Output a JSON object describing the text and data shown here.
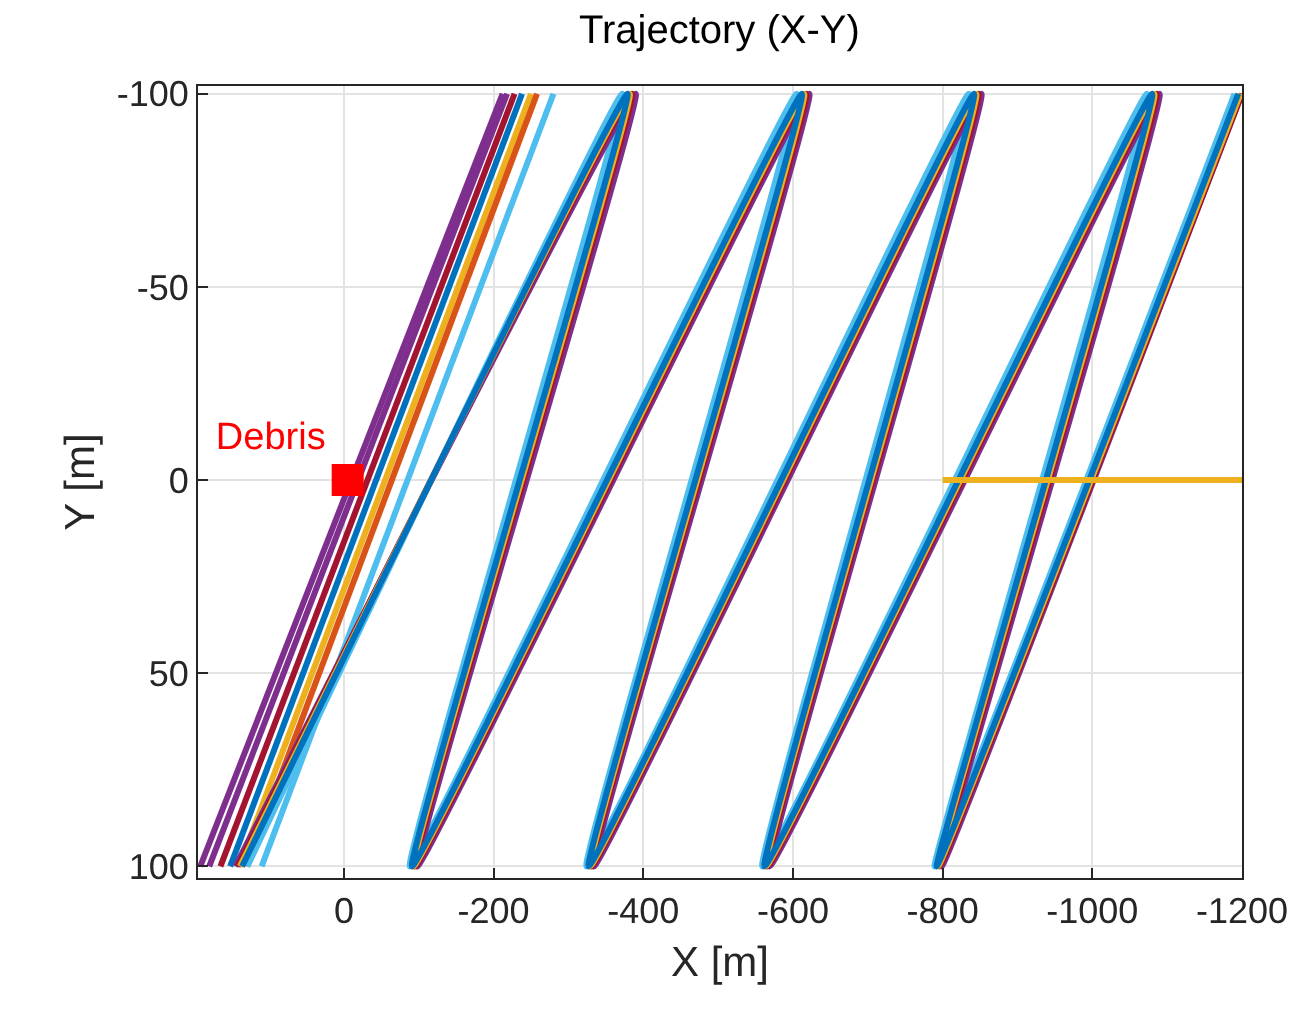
{
  "chart_data": {
    "type": "line",
    "title": "Trajectory (X-Y)",
    "xlabel": "X [m]",
    "ylabel": "Y [m]",
    "xlim": [
      195,
      -1200
    ],
    "xticks": [
      0,
      -200,
      -400,
      -600,
      -800,
      -1000,
      -1200
    ],
    "ylim": [
      103,
      -102
    ],
    "yticks": [
      -100,
      -50,
      0,
      50,
      100
    ],
    "grid": true,
    "legend": false,
    "marker": "none",
    "line_style": "solid",
    "series": [
      {
        "color": "#7e2f8e",
        "x": [
          192,
          -212
        ],
        "values": [
          100,
          -100
        ]
      },
      {
        "color": "#7e2f8e",
        "x": [
          180,
          -218
        ],
        "values": [
          100,
          -100
        ]
      },
      {
        "color": "#a2142f",
        "x": [
          165,
          -228
        ],
        "values": [
          100,
          -100
        ]
      },
      {
        "color": "#0072bd",
        "x": [
          152,
          -238
        ],
        "values": [
          100,
          -100
        ]
      },
      {
        "color": "#edb120",
        "x": [
          140,
          -250
        ],
        "values": [
          100,
          -100
        ]
      },
      {
        "color": "#d95319",
        "x": [
          130,
          -258
        ],
        "values": [
          100,
          -100
        ]
      },
      {
        "color": "#4dbeee",
        "x": [
          110,
          -280
        ],
        "values": [
          100,
          -100
        ]
      },
      {
        "color": "#4dbeee",
        "x": [
          129,
          -372,
          -88,
          -605,
          -324,
          -835,
          -559,
          -1073,
          -789,
          -1190
        ],
        "values": [
          100,
          -100,
          100,
          -100,
          100,
          -100,
          100,
          -100,
          100,
          -100
        ]
      },
      {
        "color": "#7e2f8e",
        "x": [
          145,
          -390,
          -98,
          -622,
          -334,
          -852,
          -569,
          -1090,
          -799,
          -1200
        ],
        "values": [
          100,
          -100,
          100,
          -100,
          100,
          -100,
          100,
          -100,
          100,
          -100
        ]
      },
      {
        "color": "#a2142f",
        "x": [
          142,
          -385,
          -95,
          -618,
          -331,
          -848,
          -566,
          -1086,
          -796,
          -1200
        ],
        "values": [
          100,
          -100,
          100,
          -100,
          100,
          -100,
          100,
          -100,
          100,
          -100
        ]
      },
      {
        "color": "#edb120",
        "x": [
          139,
          -382,
          -93,
          -615,
          -329,
          -845,
          -564,
          -1083,
          -794,
          -1198
        ],
        "values": [
          100,
          -100,
          100,
          -100,
          100,
          -100,
          100,
          -100,
          100,
          -100
        ]
      },
      {
        "color": "#0072bd",
        "x": [
          136,
          -379,
          -91,
          -612,
          -327,
          -842,
          -562,
          -1080,
          -792,
          -1195
        ],
        "values": [
          100,
          -100,
          100,
          -100,
          100,
          -100,
          100,
          -100,
          100,
          -100
        ]
      },
      {
        "color": "#edb120",
        "x": [
          -800,
          -1200
        ],
        "values": [
          0,
          0
        ]
      },
      {
        "type": "scatter",
        "name": "Debris",
        "color": "#ff0000",
        "marker": "square",
        "x": [
          -5
        ],
        "values": [
          0
        ]
      }
    ]
  }
}
